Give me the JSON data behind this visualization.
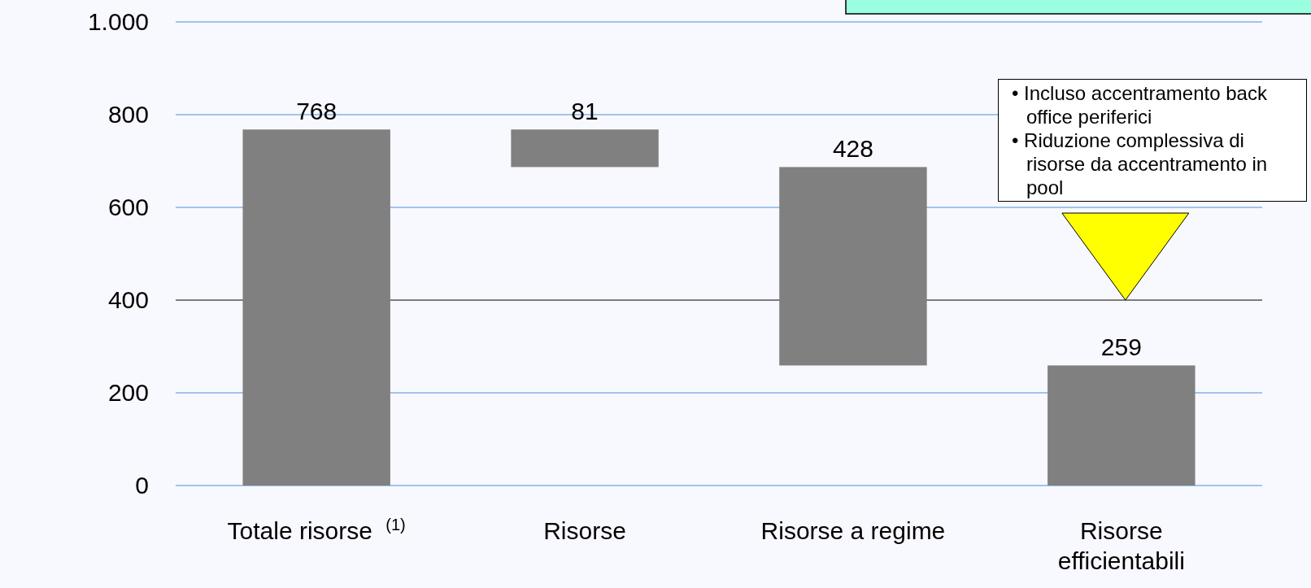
{
  "chart_data": {
    "type": "bar",
    "categories": [
      "Totale risorse $^{(1)}$",
      "Risorse",
      "Risorse a regime",
      "Risorse efficientabili"
    ],
    "values": [
      768,
      81,
      428,
      259
    ],
    "base": [
      0,
      687,
      259,
      0
    ],
    "color": "#808080",
    "ylim": [
      0,
      1000
    ],
    "yticks": [
      0,
      {
        "value": 200,
        "label": "200"
      },
      {
        "value": 400,
        "label": "400"
      },
      {
        "value": 600,
        "label": "600"
      },
      {
        "value": 800,
        "label": "800"
      },
      {
        "value": 1000,
        "label": "1.000"
      }
    ],
    "grid": "y",
    "ref_lines": [
      {
        "axis": "y",
        "value": 400,
        "color": "#000000"
      }
    ],
    "data_labels": true,
    "annotations": [
      "• Incluso accentramento back office periferici",
      "• Riduzione complessiva di risorse da accentramento in pool"
    ]
  }
}
